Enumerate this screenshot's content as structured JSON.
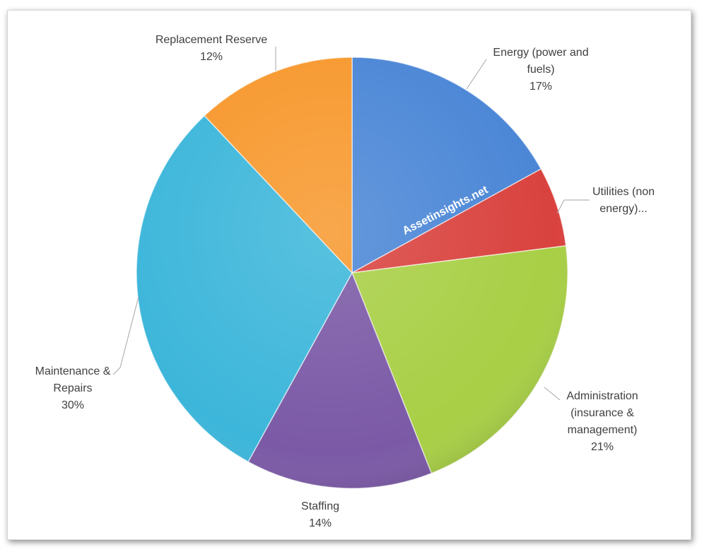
{
  "chart_data": {
    "type": "pie",
    "categories": [
      "Energy (power and fuels)",
      "Utilities (non energy)...",
      "Administration (insurance & management)",
      "Staffing",
      "Maintenance & Repairs",
      "Replacement Reserve"
    ],
    "values": [
      17,
      6,
      21,
      14,
      30,
      12
    ],
    "value_labels": [
      "17%",
      null,
      "21%",
      "14%",
      "30%",
      "12%"
    ],
    "colors": [
      "#4a86d6",
      "#d9423e",
      "#a8cf45",
      "#7b59a6",
      "#3cb6da",
      "#f7982d"
    ],
    "watermark": "Assetinsights.net"
  }
}
